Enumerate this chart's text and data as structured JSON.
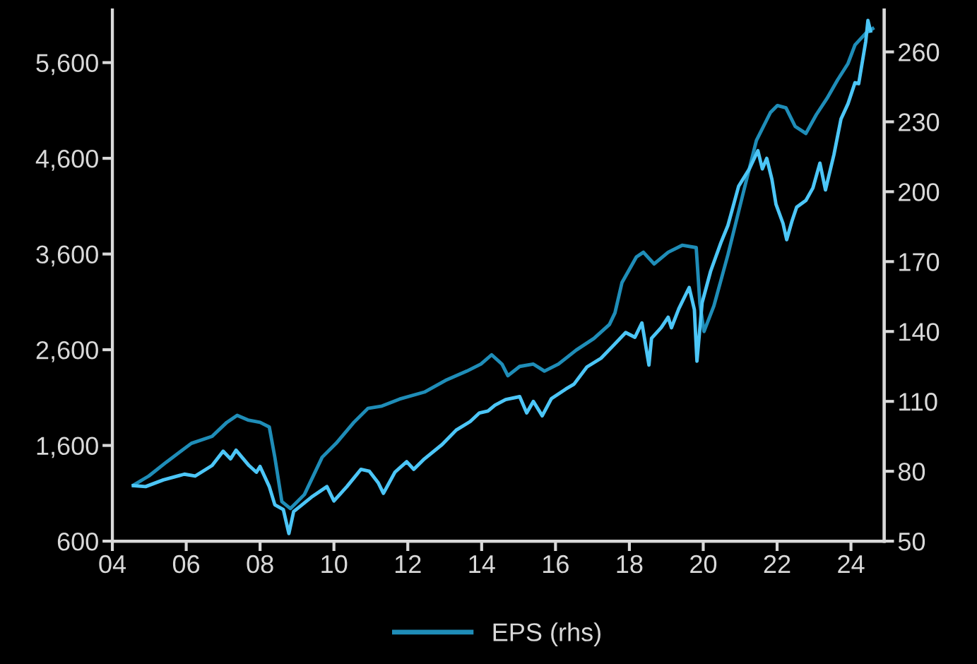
{
  "chart_data": {
    "type": "line",
    "xlim": [
      2004.0,
      2024.9
    ],
    "xticks": [
      {
        "value": 2004,
        "label": "04"
      },
      {
        "value": 2006,
        "label": "06"
      },
      {
        "value": 2008,
        "label": "08"
      },
      {
        "value": 2010,
        "label": "10"
      },
      {
        "value": 2012,
        "label": "12"
      },
      {
        "value": 2014,
        "label": "14"
      },
      {
        "value": 2016,
        "label": "16"
      },
      {
        "value": 2018,
        "label": "18"
      },
      {
        "value": 2020,
        "label": "20"
      },
      {
        "value": 2022,
        "label": "22"
      },
      {
        "value": 2024,
        "label": "24"
      }
    ],
    "ylim": [
      600,
      6150
    ],
    "yticks": [
      {
        "value": 600,
        "label": "600"
      },
      {
        "value": 1600,
        "label": "1,600"
      },
      {
        "value": 2600,
        "label": "2,600"
      },
      {
        "value": 3600,
        "label": "3,600"
      },
      {
        "value": 4600,
        "label": "4,600"
      },
      {
        "value": 5600,
        "label": "5,600"
      }
    ],
    "y2lim": [
      50,
      278
    ],
    "y2ticks": [
      50,
      80,
      110,
      140,
      170,
      200,
      230,
      260
    ],
    "grid": false,
    "legend": "bottom",
    "series": [
      {
        "color": "#4cc6f7",
        "x": [
          2004.57,
          2004.9,
          2005.38,
          2005.95,
          2006.24,
          2006.7,
          2007.0,
          2007.2,
          2007.35,
          2007.7,
          2007.9,
          2008.0,
          2008.25,
          2008.4,
          2008.63,
          2008.78,
          2008.91,
          2009.39,
          2009.81,
          2010.0,
          2010.35,
          2010.73,
          2010.96,
          2011.2,
          2011.34,
          2011.65,
          2011.97,
          2012.16,
          2012.45,
          2012.93,
          2013.31,
          2013.69,
          2013.94,
          2014.17,
          2014.36,
          2014.65,
          2015.03,
          2015.22,
          2015.4,
          2015.64,
          2015.89,
          2016.28,
          2016.5,
          2016.85,
          2017.23,
          2017.58,
          2017.9,
          2018.15,
          2018.34,
          2018.53,
          2018.6,
          2018.86,
          2019.05,
          2019.14,
          2019.34,
          2019.62,
          2019.76,
          2019.83,
          2019.97,
          2020.2,
          2020.48,
          2020.67,
          2020.96,
          2021.25,
          2021.48,
          2021.6,
          2021.72,
          2021.86,
          2021.97,
          2022.16,
          2022.26,
          2022.4,
          2022.53,
          2022.78,
          2022.97,
          2023.16,
          2023.31,
          2023.54,
          2023.73,
          2023.92,
          2024.11,
          2024.21,
          2024.4,
          2024.46,
          2024.53
        ],
        "values": [
          1180,
          1170,
          1240,
          1300,
          1280,
          1390,
          1540,
          1460,
          1550,
          1390,
          1320,
          1380,
          1170,
          980,
          930,
          680,
          910,
          1060,
          1170,
          1020,
          1170,
          1350,
          1330,
          1210,
          1100,
          1320,
          1430,
          1350,
          1460,
          1610,
          1760,
          1850,
          1940,
          1960,
          2020,
          2080,
          2110,
          1940,
          2060,
          1910,
          2090,
          2190,
          2240,
          2420,
          2510,
          2650,
          2780,
          2730,
          2880,
          2440,
          2720,
          2830,
          2940,
          2830,
          3030,
          3250,
          3020,
          2480,
          3090,
          3420,
          3720,
          3900,
          4310,
          4490,
          4680,
          4490,
          4600,
          4380,
          4120,
          3920,
          3750,
          3940,
          4090,
          4160,
          4290,
          4550,
          4270,
          4640,
          5010,
          5170,
          5390,
          5380,
          5820,
          6040,
          5930
        ]
      },
      {
        "name": "EPS (rhs)",
        "color": "#1f8db8",
        "axis": "y2",
        "x": [
          2004.57,
          2004.99,
          2005.47,
          2006.14,
          2006.7,
          2007.1,
          2007.38,
          2007.67,
          2008.0,
          2008.25,
          2008.4,
          2008.59,
          2008.82,
          2009.2,
          2009.68,
          2010.06,
          2010.54,
          2010.92,
          2011.3,
          2011.78,
          2012.45,
          2013.02,
          2013.6,
          2013.98,
          2014.27,
          2014.55,
          2014.71,
          2015.03,
          2015.4,
          2015.7,
          2016.08,
          2016.56,
          2017.04,
          2017.46,
          2017.61,
          2017.8,
          2018.19,
          2018.38,
          2018.67,
          2019.05,
          2019.43,
          2019.81,
          2019.91,
          2020.02,
          2020.29,
          2020.67,
          2021.06,
          2021.44,
          2021.82,
          2022.01,
          2022.24,
          2022.49,
          2022.78,
          2023.06,
          2023.35,
          2023.64,
          2023.92,
          2024.11,
          2024.4,
          2024.59
        ],
        "values": [
          74,
          78,
          84,
          92,
          95,
          101,
          104,
          102,
          101,
          99,
          86,
          67,
          64,
          70,
          86,
          92,
          101,
          107,
          108,
          111,
          114,
          119,
          123,
          126,
          130,
          126,
          121,
          125,
          126,
          123,
          126,
          132,
          137,
          143,
          148,
          161,
          172,
          174,
          169,
          174,
          177,
          176,
          152,
          140,
          151,
          173,
          198,
          222,
          234,
          237,
          236,
          228,
          225,
          233,
          240,
          248,
          255,
          263,
          268,
          270
        ]
      }
    ]
  }
}
